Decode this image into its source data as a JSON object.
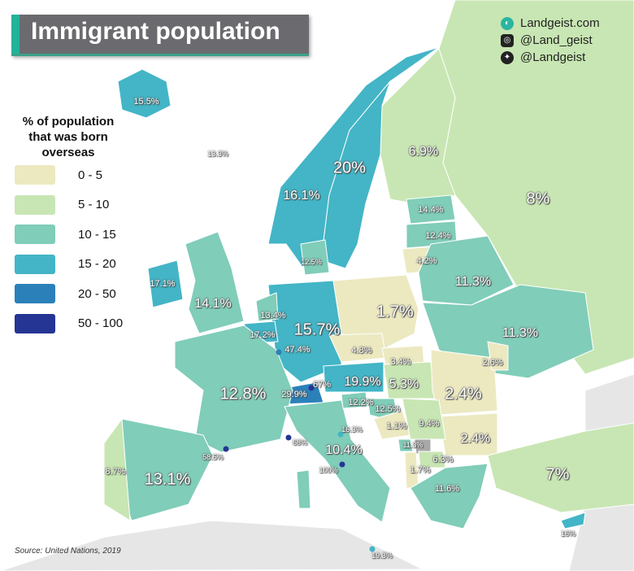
{
  "title": "Immigrant population",
  "social": [
    {
      "icon": "globe-icon",
      "text": "Landgeist.com"
    },
    {
      "icon": "instagram-icon",
      "text": "@Land_geist"
    },
    {
      "icon": "twitter-icon",
      "text": "@Landgeist"
    }
  ],
  "legend": {
    "title": "% of population that was born overseas",
    "items": [
      {
        "range": "0 - 5",
        "color": "#ece9c1"
      },
      {
        "range": "5 - 10",
        "color": "#c8e6b3"
      },
      {
        "range": "10 - 15",
        "color": "#80cdb9"
      },
      {
        "range": "15 - 20",
        "color": "#43b5c6"
      },
      {
        "range": "20 - 50",
        "color": "#2c80b9"
      },
      {
        "range": "50 - 100",
        "color": "#253594"
      }
    ]
  },
  "colors": {
    "no_data": "#a8a8a8",
    "outside": "#e6e6e6",
    "sea": "#ffffff"
  },
  "labels": {
    "russia": "8%",
    "finland": "6.9%",
    "sweden": "20%",
    "norway": "16.1%",
    "iceland": "15.5%",
    "faroe": "13.3%",
    "ireland": "17.1%",
    "uk": "14.1%",
    "denmark": "12.5%",
    "estonia": "14.4%",
    "latvia": "12.4%",
    "lithuania": "4.2%",
    "belarus": "11.3%",
    "ukraine": "11.3%",
    "poland": "1.7%",
    "germany": "15.7%",
    "netherlands": "13.4%",
    "belgium": "17.2%",
    "luxembourg": "47.4%",
    "czechia": "4.8%",
    "slovakia": "3.4%",
    "austria": "19.9%",
    "hungary": "5.3%",
    "moldova": "2.6%",
    "romania": "2.4%",
    "bulgaria": "2.4%",
    "switzerland": "29.9%",
    "liechtenstein": "67%",
    "france": "12.8%",
    "monaco": "68%",
    "andorra": "58.5%",
    "spain": "13.1%",
    "portugal": "8.7%",
    "italy": "10.4%",
    "san_marino": "16.3%",
    "vatican": "100%",
    "slovenia": "12.2%",
    "croatia": "12.5%",
    "bosnia": "1.1%",
    "serbia": "9.4%",
    "montenegro": "11.3%",
    "albania": "1.7%",
    "north_macedonia": "6.3%",
    "greece": "11.6%",
    "turkey": "7%",
    "cyprus": "16%",
    "malta": "19.3%"
  },
  "source": "Source: United Nations, 2019"
}
